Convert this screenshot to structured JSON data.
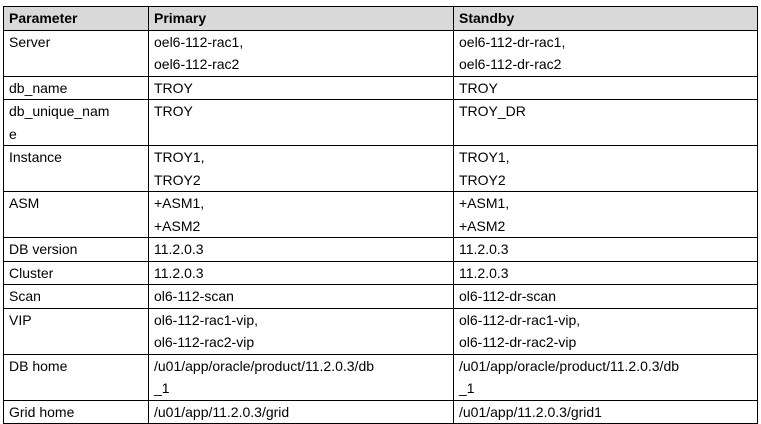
{
  "table": {
    "header": [
      "Parameter",
      "Primary",
      "Standby"
    ],
    "rows": [
      [
        [
          "Server"
        ],
        [
          "oel6-112-rac1,",
          "oel6-112-rac2"
        ],
        [
          "oel6-112-dr-rac1,",
          "oel6-112-dr-rac2"
        ]
      ],
      [
        [
          "db_name"
        ],
        [
          "TROY"
        ],
        [
          "TROY"
        ]
      ],
      [
        [
          "db_unique_nam",
          "e"
        ],
        [
          "TROY"
        ],
        [
          "TROY_DR"
        ]
      ],
      [
        [
          "Instance"
        ],
        [
          "TROY1,",
          "TROY2"
        ],
        [
          "TROY1,",
          "TROY2"
        ]
      ],
      [
        [
          "ASM"
        ],
        [
          "+ASM1,",
          "+ASM2"
        ],
        [
          "+ASM1,",
          "+ASM2"
        ]
      ],
      [
        [
          "DB version"
        ],
        [
          "11.2.0.3"
        ],
        [
          "11.2.0.3"
        ]
      ],
      [
        [
          "Cluster"
        ],
        [
          "11.2.0.3"
        ],
        [
          "11.2.0.3"
        ]
      ],
      [
        [
          "Scan"
        ],
        [
          "ol6-112-scan"
        ],
        [
          "ol6-112-dr-scan"
        ]
      ],
      [
        [
          "VIP"
        ],
        [
          "ol6-112-rac1-vip,",
          "ol6-112-rac2-vip"
        ],
        [
          "ol6-112-dr-rac1-vip,",
          "ol6-112-dr-rac2-vip"
        ]
      ],
      [
        [
          "DB home"
        ],
        [
          "/u01/app/oracle/product/11.2.0.3/db",
          "_1"
        ],
        [
          "/u01/app/oracle/product/11.2.0.3/db",
          "_1"
        ]
      ],
      [
        [
          "Grid home"
        ],
        [
          "/u01/app/11.2.0.3/grid"
        ],
        [
          "/u01/app/11.2.0.3/grid1"
        ]
      ]
    ]
  }
}
